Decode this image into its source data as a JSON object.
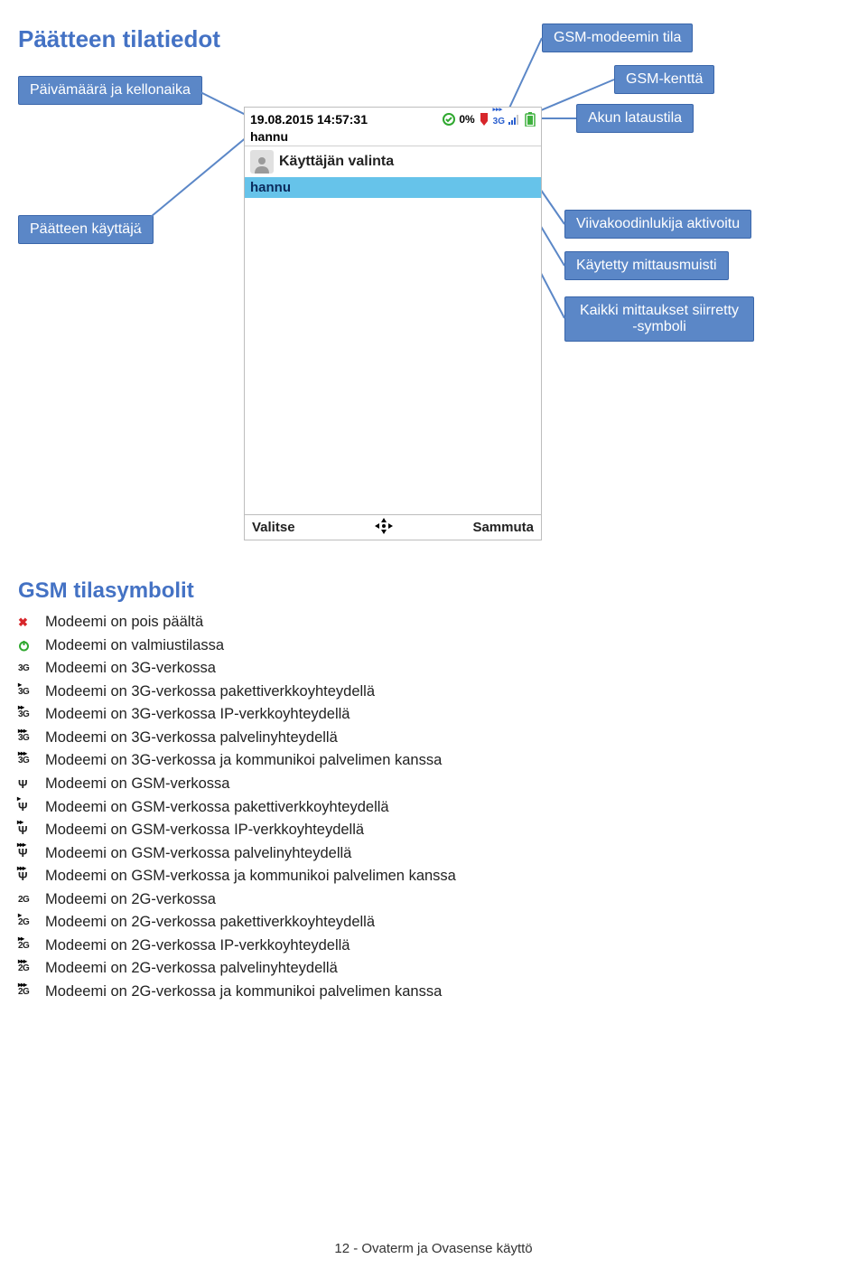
{
  "title": "Päätteen tilatiedot",
  "callouts": {
    "datetime": "Päivämäärä ja kellonaika",
    "user": "Päätteen käyttäjä",
    "gsm_state": "GSM-modeemin tila",
    "gsm_field": "GSM-kenttä",
    "battery": "Akun lataustila",
    "barcode": "Viivakoodinlukija aktivoitu",
    "memory": "Käytetty mittausmuisti",
    "transferred": "Kaikki mittaukset siirretty -symboli"
  },
  "device": {
    "timestamp": "19.08.2015 14:57:31",
    "percent": "0%",
    "net_label": "3G",
    "user": "hannu",
    "header": "Käyttäjän valinta",
    "selected": "hannu",
    "left_btn": "Valitse",
    "right_btn": "Sammuta"
  },
  "section2_title": "GSM tilasymbolit",
  "symbols": [
    {
      "icon": "x",
      "text": "Modeemi on pois päältä"
    },
    {
      "icon": "power",
      "text": "Modeemi on valmiustilassa"
    },
    {
      "icon": "3g0",
      "text": "Modeemi on 3G-verkossa"
    },
    {
      "icon": "3g1",
      "text": "Modeemi on 3G-verkossa pakettiverkkoyhteydellä"
    },
    {
      "icon": "3g2",
      "text": "Modeemi on 3G-verkossa IP-verkkoyhteydellä"
    },
    {
      "icon": "3g3",
      "text": "Modeemi on 3G-verkossa palvelinyhteydellä"
    },
    {
      "icon": "3g4",
      "text": "Modeemi on 3G-verkossa ja kommunikoi palvelimen kanssa"
    },
    {
      "icon": "gsm0",
      "text": "Modeemi on GSM-verkossa"
    },
    {
      "icon": "gsm1",
      "text": "Modeemi on GSM-verkossa pakettiverkkoyhteydellä"
    },
    {
      "icon": "gsm2",
      "text": "Modeemi on GSM-verkossa IP-verkkoyhteydellä"
    },
    {
      "icon": "gsm3",
      "text": "Modeemi on GSM-verkossa palvelinyhteydellä"
    },
    {
      "icon": "gsm4",
      "text": "Modeemi on GSM-verkossa ja kommunikoi palvelimen kanssa"
    },
    {
      "icon": "2g0",
      "text": "Modeemi on 2G-verkossa"
    },
    {
      "icon": "2g1",
      "text": "Modeemi on 2G-verkossa pakettiverkkoyhteydellä"
    },
    {
      "icon": "2g2",
      "text": "Modeemi on 2G-verkossa IP-verkkoyhteydellä"
    },
    {
      "icon": "2g3",
      "text": "Modeemi on 2G-verkossa palvelinyhteydellä"
    },
    {
      "icon": "2g4",
      "text": "Modeemi on 2G-verkossa ja kommunikoi palvelimen kanssa"
    }
  ],
  "footer": "12 - Ovaterm ja Ovasense käyttö",
  "colors": {
    "accent": "#4472c4",
    "callout_bg": "#5b87c7",
    "callout_border": "#3a66aa",
    "line": "#5b87c7",
    "highlight_row": "#66c3ea",
    "check_green": "#2fa82f",
    "red": "#d7262b",
    "blue_icon": "#2a5fcf",
    "battery_green": "#3fb13f"
  }
}
